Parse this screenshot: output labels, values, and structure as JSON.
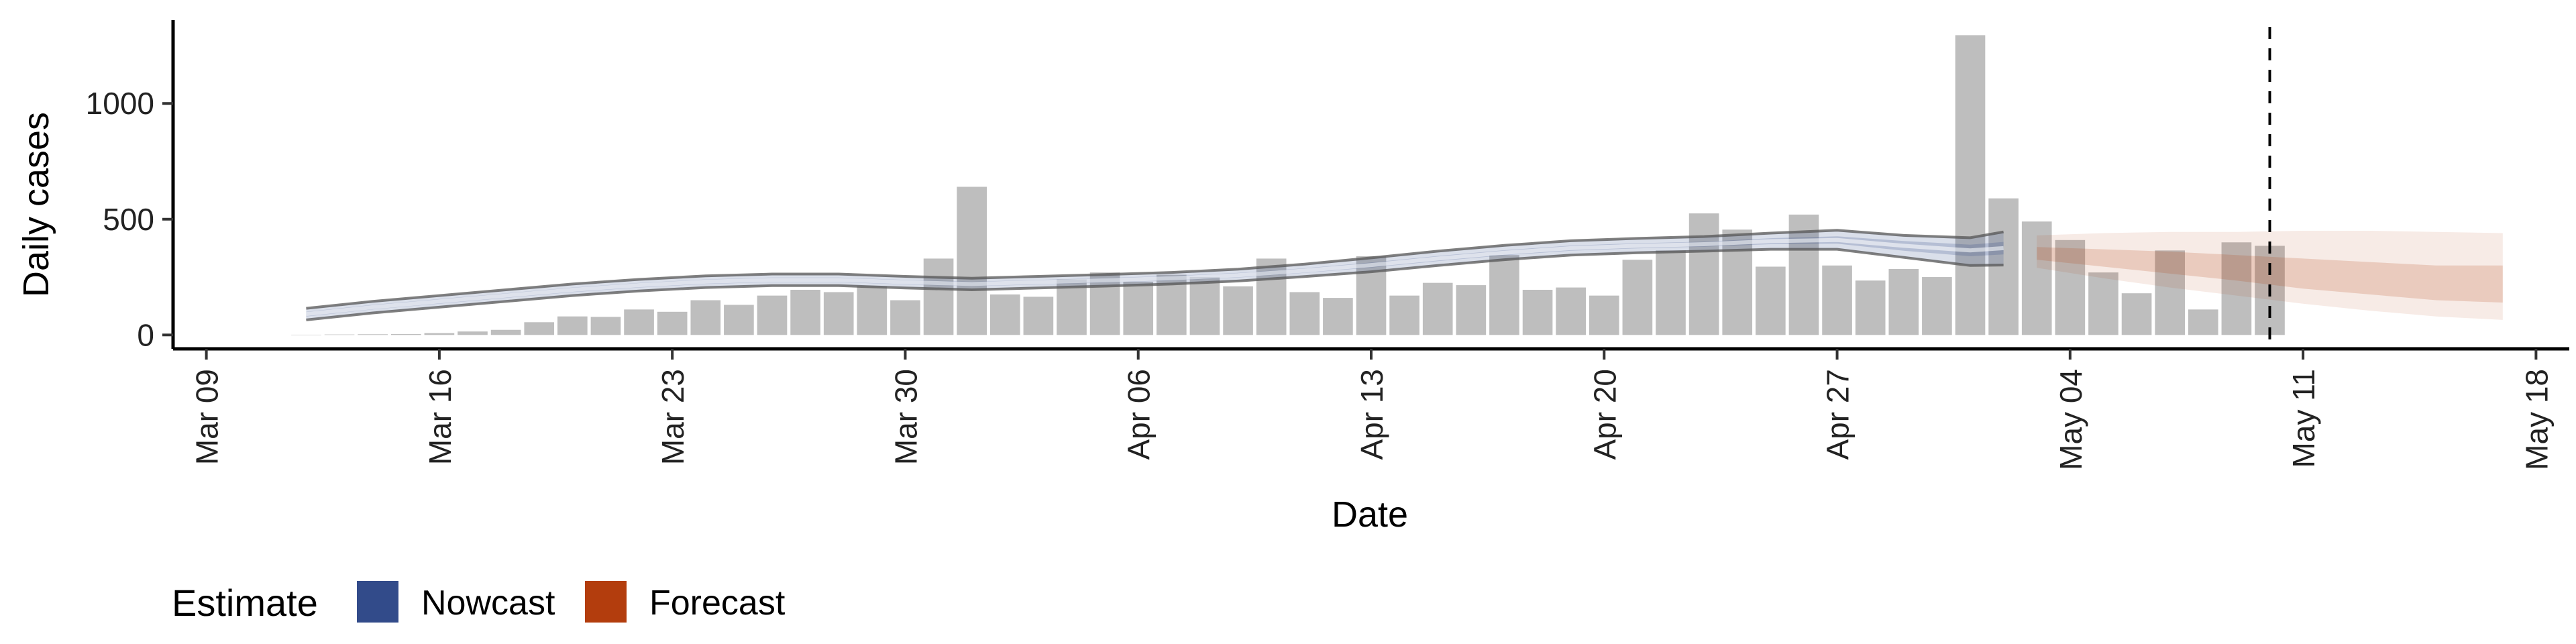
{
  "chart_data": {
    "type": "bar",
    "xlabel": "Date",
    "ylabel": "Daily cases",
    "x_tick_labels": [
      "Mar 09",
      "Mar 16",
      "Mar 23",
      "Mar 30",
      "Apr 06",
      "Apr 13",
      "Apr 20",
      "Apr 27",
      "May 04",
      "May 11",
      "May 18"
    ],
    "y_tick_labels": [
      "0",
      "500",
      "1000"
    ],
    "y_ticks": [
      0,
      500,
      1000
    ],
    "ylim": [
      -60,
      1360
    ],
    "xlim": [
      "2020-03-08",
      "2020-05-19"
    ],
    "grid": false,
    "legend_placement": "bottom-left",
    "reference_line": {
      "date": "2020-05-10",
      "style": "dashed"
    },
    "bars": {
      "color": "#bebebe",
      "start_date": "2020-03-12",
      "values": [
        1,
        2,
        3,
        4,
        8,
        15,
        22,
        55,
        80,
        78,
        110,
        100,
        150,
        130,
        170,
        195,
        185,
        210,
        150,
        330,
        640,
        175,
        165,
        240,
        270,
        230,
        260,
        250,
        210,
        330,
        185,
        160,
        340,
        170,
        225,
        215,
        345,
        195,
        205,
        170,
        325,
        365,
        525,
        455,
        295,
        520,
        300,
        235,
        285,
        250,
        1295,
        590,
        490,
        410,
        270,
        180,
        365,
        110,
        400,
        385
      ]
    },
    "series": [
      {
        "name": "Nowcast",
        "color": "#324b8a",
        "dates": [
          "2020-03-12",
          "2020-03-14",
          "2020-03-16",
          "2020-03-18",
          "2020-03-20",
          "2020-03-22",
          "2020-03-24",
          "2020-03-26",
          "2020-03-28",
          "2020-03-30",
          "2020-04-01",
          "2020-04-03",
          "2020-04-05",
          "2020-04-07",
          "2020-04-09",
          "2020-04-11",
          "2020-04-13",
          "2020-04-15",
          "2020-04-17",
          "2020-04-19",
          "2020-04-21",
          "2020-04-23",
          "2020-04-25",
          "2020-04-27",
          "2020-04-29",
          "2020-05-01",
          "2020-05-02"
        ],
        "median": [
          90,
          120,
          145,
          170,
          195,
          215,
          230,
          238,
          238,
          228,
          220,
          228,
          236,
          245,
          258,
          278,
          302,
          330,
          355,
          375,
          385,
          392,
          405,
          410,
          385,
          365,
          375
        ],
        "lower90": [
          65,
          95,
          120,
          145,
          170,
          190,
          205,
          213,
          213,
          203,
          195,
          203,
          211,
          220,
          233,
          252,
          273,
          300,
          325,
          345,
          355,
          362,
          370,
          370,
          335,
          300,
          302
        ],
        "upper90": [
          115,
          145,
          170,
          195,
          220,
          240,
          255,
          263,
          263,
          253,
          245,
          253,
          261,
          270,
          284,
          306,
          333,
          362,
          387,
          407,
          417,
          425,
          440,
          452,
          430,
          420,
          445
        ],
        "lower50": [
          80,
          110,
          135,
          160,
          185,
          205,
          220,
          228,
          228,
          218,
          210,
          218,
          226,
          235,
          248,
          268,
          291,
          319,
          344,
          364,
          374,
          381,
          392,
          394,
          364,
          340,
          348
        ],
        "upper50": [
          100,
          130,
          155,
          180,
          205,
          225,
          240,
          248,
          248,
          238,
          230,
          238,
          246,
          255,
          268,
          288,
          313,
          341,
          366,
          386,
          396,
          403,
          418,
          426,
          406,
          390,
          402
        ]
      },
      {
        "name": "Forecast",
        "color": "#b33d0d",
        "dates": [
          "2020-05-03",
          "2020-05-05",
          "2020-05-07",
          "2020-05-09",
          "2020-05-11",
          "2020-05-13",
          "2020-05-15",
          "2020-05-17"
        ],
        "median": [
          350,
          330,
          305,
          280,
          250,
          225,
          205,
          200
        ],
        "lower90": [
          290,
          245,
          205,
          170,
          135,
          105,
          80,
          65
        ],
        "upper90": [
          430,
          440,
          445,
          445,
          450,
          450,
          445,
          440
        ],
        "lower50": [
          325,
          295,
          265,
          235,
          200,
          175,
          150,
          140
        ],
        "upper50": [
          380,
          370,
          360,
          345,
          330,
          315,
          300,
          300
        ]
      }
    ]
  },
  "legend": {
    "title": "Estimate",
    "items": [
      {
        "label": "Nowcast",
        "color": "#324b8a"
      },
      {
        "label": "Forecast",
        "color": "#b33d0d"
      }
    ]
  }
}
